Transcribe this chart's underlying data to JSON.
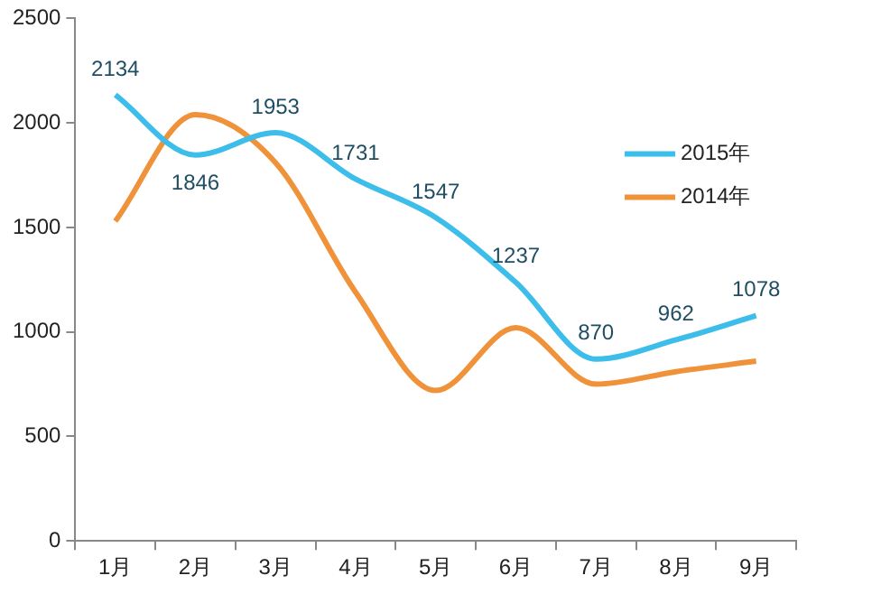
{
  "chart_data": {
    "type": "line",
    "categories": [
      "1月",
      "2月",
      "3月",
      "4月",
      "5月",
      "6月",
      "7月",
      "8月",
      "9月"
    ],
    "series": [
      {
        "name": "2015年",
        "color": "#3dbde9",
        "values": [
          2134,
          1846,
          1953,
          1731,
          1547,
          1237,
          870,
          962,
          1078
        ],
        "value_labels": [
          "2134",
          "1846",
          "1953",
          "1731",
          "1547",
          "1237",
          "870",
          "962",
          "1078"
        ]
      },
      {
        "name": "2014年",
        "color": "#f0923a",
        "values": [
          1530,
          2040,
          1810,
          1190,
          720,
          1020,
          750,
          810,
          860
        ]
      }
    ],
    "ylim": [
      0,
      2500
    ],
    "yticks": [
      0,
      500,
      1000,
      1500,
      2000,
      2500
    ],
    "grid": false,
    "legend": "right",
    "marker": "none",
    "line_style": "solid"
  }
}
